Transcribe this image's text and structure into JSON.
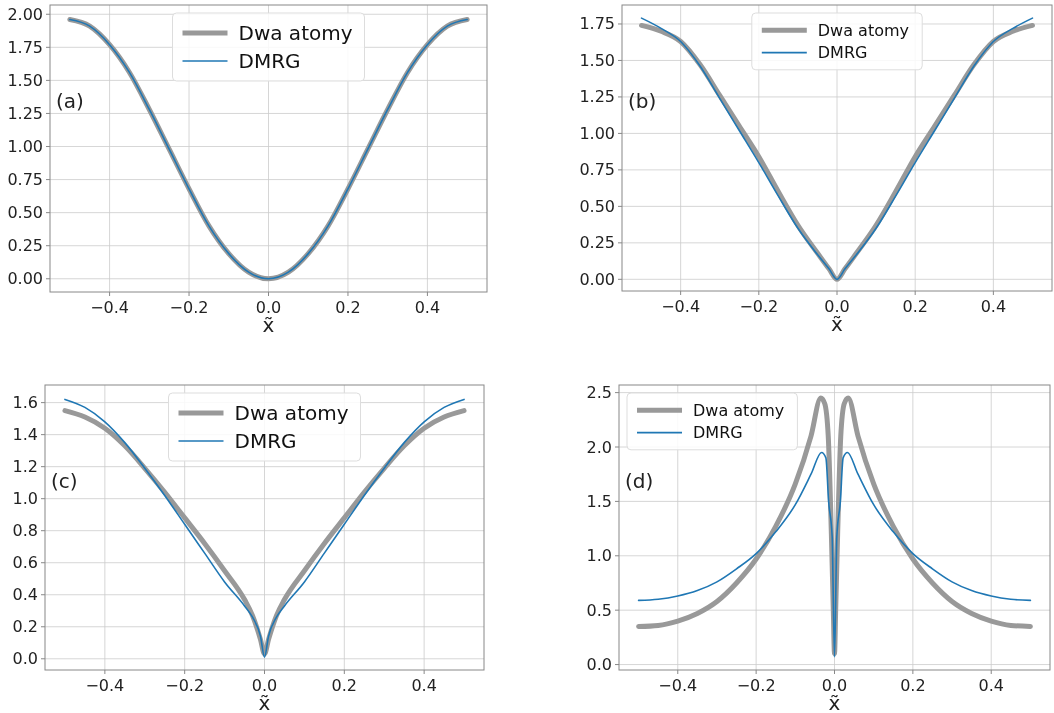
{
  "chart_data": [
    {
      "type": "line",
      "xlabel": "x̃",
      "xlim": [
        -0.55,
        0.55
      ],
      "ylim": [
        -0.1,
        2.07
      ],
      "xticks": [
        {
          "value": -0.4,
          "label": "−0.4"
        },
        {
          "value": -0.2,
          "label": "−0.2"
        },
        {
          "value": 0,
          "label": "0.0"
        },
        {
          "value": 0.2,
          "label": "0.2"
        },
        {
          "value": 0.4,
          "label": "0.4"
        }
      ],
      "yticks": [
        {
          "value": 0,
          "label": "0.00"
        },
        {
          "value": 0.25,
          "label": "0.25"
        },
        {
          "value": 0.5,
          "label": "0.50"
        },
        {
          "value": 0.75,
          "label": "0.75"
        },
        {
          "value": 1,
          "label": "1.00"
        },
        {
          "value": 1.25,
          "label": "1.25"
        },
        {
          "value": 1.5,
          "label": "1.50"
        },
        {
          "value": 1.75,
          "label": "1.75"
        },
        {
          "value": 2,
          "label": "2.00"
        }
      ],
      "grid": true,
      "legend": "top",
      "annotations": [
        "(a)"
      ],
      "series": [
        {
          "name": "Dwa atomy",
          "color": "#999999",
          "x": [
            -0.5,
            -0.45,
            -0.4,
            -0.35,
            -0.3,
            -0.25,
            -0.2,
            -0.15,
            -0.1,
            -0.05,
            0,
            0.05,
            0.1,
            0.15,
            0.2,
            0.25,
            0.3,
            0.35,
            0.4,
            0.45,
            0.5
          ],
          "values": [
            1.96,
            1.91,
            1.77,
            1.56,
            1.28,
            0.98,
            0.68,
            0.4,
            0.19,
            0.05,
            0,
            0.05,
            0.19,
            0.4,
            0.68,
            0.98,
            1.28,
            1.56,
            1.77,
            1.91,
            1.96
          ]
        },
        {
          "name": "DMRG",
          "color": "#1f77b4",
          "x": [
            -0.5,
            -0.45,
            -0.4,
            -0.35,
            -0.3,
            -0.25,
            -0.2,
            -0.15,
            -0.1,
            -0.05,
            0,
            0.05,
            0.1,
            0.15,
            0.2,
            0.25,
            0.3,
            0.35,
            0.4,
            0.45,
            0.5
          ],
          "values": [
            1.96,
            1.91,
            1.77,
            1.56,
            1.28,
            0.98,
            0.68,
            0.4,
            0.19,
            0.05,
            0,
            0.05,
            0.19,
            0.4,
            0.68,
            0.98,
            1.28,
            1.56,
            1.77,
            1.91,
            1.96
          ]
        }
      ]
    },
    {
      "type": "line",
      "xlabel": "x̃",
      "xlim": [
        -0.55,
        0.55
      ],
      "ylim": [
        -0.08,
        1.88
      ],
      "xticks": [
        {
          "value": -0.4,
          "label": "−0.4"
        },
        {
          "value": -0.2,
          "label": "−0.2"
        },
        {
          "value": 0,
          "label": "0.0"
        },
        {
          "value": 0.2,
          "label": "0.2"
        },
        {
          "value": 0.4,
          "label": "0.4"
        }
      ],
      "yticks": [
        {
          "value": 0,
          "label": "0.00"
        },
        {
          "value": 0.25,
          "label": "0.25"
        },
        {
          "value": 0.5,
          "label": "0.50"
        },
        {
          "value": 0.75,
          "label": "0.75"
        },
        {
          "value": 1,
          "label": "1.00"
        },
        {
          "value": 1.25,
          "label": "1.25"
        },
        {
          "value": 1.5,
          "label": "1.50"
        },
        {
          "value": 1.75,
          "label": "1.75"
        }
      ],
      "grid": true,
      "legend": "top",
      "annotations": [
        "(b)"
      ],
      "series": [
        {
          "name": "Dwa atomy",
          "color": "#999999",
          "x": [
            -0.5,
            -0.45,
            -0.4,
            -0.35,
            -0.3,
            -0.25,
            -0.2,
            -0.15,
            -0.1,
            -0.05,
            -0.02,
            0,
            0.02,
            0.05,
            0.1,
            0.15,
            0.2,
            0.25,
            0.3,
            0.35,
            0.4,
            0.45,
            0.5
          ],
          "values": [
            1.74,
            1.7,
            1.63,
            1.47,
            1.26,
            1.05,
            0.84,
            0.6,
            0.37,
            0.18,
            0.07,
            0,
            0.07,
            0.18,
            0.37,
            0.6,
            0.84,
            1.05,
            1.26,
            1.47,
            1.63,
            1.7,
            1.74
          ]
        },
        {
          "name": "DMRG",
          "color": "#1f77b4",
          "x": [
            -0.5,
            -0.45,
            -0.4,
            -0.35,
            -0.3,
            -0.25,
            -0.2,
            -0.15,
            -0.1,
            -0.05,
            -0.02,
            0,
            0.02,
            0.05,
            0.1,
            0.15,
            0.2,
            0.25,
            0.3,
            0.35,
            0.4,
            0.45,
            0.5
          ],
          "values": [
            1.79,
            1.72,
            1.63,
            1.46,
            1.24,
            1.02,
            0.8,
            0.57,
            0.35,
            0.17,
            0.07,
            0,
            0.07,
            0.17,
            0.35,
            0.57,
            0.8,
            1.02,
            1.24,
            1.46,
            1.63,
            1.72,
            1.79
          ]
        }
      ]
    },
    {
      "type": "line",
      "xlabel": "x̃",
      "xlim": [
        -0.55,
        0.55
      ],
      "ylim": [
        -0.07,
        1.71
      ],
      "xticks": [
        {
          "value": -0.4,
          "label": "−0.4"
        },
        {
          "value": -0.2,
          "label": "−0.2"
        },
        {
          "value": 0,
          "label": "0.0"
        },
        {
          "value": 0.2,
          "label": "0.2"
        },
        {
          "value": 0.4,
          "label": "0.4"
        }
      ],
      "yticks": [
        {
          "value": 0,
          "label": "0.0"
        },
        0.2,
        0.4,
        0.6,
        0.8,
        {
          "value": 1,
          "label": "1.0"
        },
        1.2,
        1.4,
        1.6
      ],
      "grid": true,
      "legend": "top",
      "annotations": [
        "(c)"
      ],
      "series": [
        {
          "name": "Dwa atomy",
          "color": "#999999",
          "x": [
            -0.5,
            -0.45,
            -0.4,
            -0.35,
            -0.3,
            -0.25,
            -0.2,
            -0.15,
            -0.1,
            -0.05,
            -0.03,
            -0.01,
            0,
            0.01,
            0.03,
            0.05,
            0.1,
            0.15,
            0.2,
            0.25,
            0.3,
            0.35,
            0.4,
            0.45,
            0.5
          ],
          "values": [
            1.55,
            1.51,
            1.44,
            1.33,
            1.19,
            1.04,
            0.88,
            0.72,
            0.55,
            0.37,
            0.27,
            0.12,
            0.03,
            0.12,
            0.27,
            0.37,
            0.55,
            0.72,
            0.88,
            1.04,
            1.19,
            1.33,
            1.44,
            1.51,
            1.55
          ]
        },
        {
          "name": "DMRG",
          "color": "#1f77b4",
          "x": [
            -0.5,
            -0.45,
            -0.4,
            -0.35,
            -0.3,
            -0.25,
            -0.2,
            -0.15,
            -0.1,
            -0.05,
            -0.03,
            -0.01,
            0,
            0.01,
            0.03,
            0.05,
            0.1,
            0.15,
            0.2,
            0.25,
            0.3,
            0.35,
            0.4,
            0.45,
            0.5
          ],
          "values": [
            1.62,
            1.57,
            1.48,
            1.35,
            1.19,
            1.02,
            0.84,
            0.66,
            0.48,
            0.33,
            0.26,
            0.14,
            0.01,
            0.14,
            0.26,
            0.33,
            0.48,
            0.66,
            0.84,
            1.02,
            1.19,
            1.35,
            1.48,
            1.57,
            1.62
          ]
        }
      ]
    },
    {
      "type": "line",
      "xlabel": "x̃",
      "xlim": [
        -0.55,
        0.55
      ],
      "ylim": [
        -0.05,
        2.57
      ],
      "xticks": [
        {
          "value": -0.4,
          "label": "−0.4"
        },
        {
          "value": -0.2,
          "label": "−0.2"
        },
        {
          "value": 0,
          "label": "0.0"
        },
        {
          "value": 0.2,
          "label": "0.2"
        },
        {
          "value": 0.4,
          "label": "0.4"
        }
      ],
      "yticks": [
        {
          "value": 0,
          "label": "0.0"
        },
        0.5,
        {
          "value": 1,
          "label": "1.0"
        },
        1.5,
        {
          "value": 2,
          "label": "2.0"
        },
        2.5
      ],
      "grid": true,
      "legend": "top left",
      "annotations": [
        "(d)"
      ],
      "series": [
        {
          "name": "Dwa atomy",
          "color": "#999999",
          "x": [
            -0.5,
            -0.45,
            -0.4,
            -0.35,
            -0.3,
            -0.25,
            -0.2,
            -0.15,
            -0.1,
            -0.06,
            -0.035,
            -0.025,
            -0.016,
            -0.008,
            -0.003,
            0,
            0.003,
            0.008,
            0.016,
            0.025,
            0.035,
            0.06,
            0.1,
            0.15,
            0.2,
            0.25,
            0.3,
            0.35,
            0.4,
            0.45,
            0.5
          ],
          "values": [
            0.35,
            0.36,
            0.4,
            0.47,
            0.58,
            0.75,
            0.97,
            1.27,
            1.66,
            2.1,
            2.45,
            2.4,
            2.1,
            1.2,
            0.5,
            0.1,
            0.5,
            1.2,
            2.1,
            2.4,
            2.45,
            2.1,
            1.66,
            1.27,
            0.97,
            0.75,
            0.58,
            0.47,
            0.4,
            0.36,
            0.35
          ]
        },
        {
          "name": "DMRG",
          "color": "#1f77b4",
          "x": [
            -0.5,
            -0.45,
            -0.4,
            -0.35,
            -0.3,
            -0.25,
            -0.2,
            -0.15,
            -0.1,
            -0.06,
            -0.033,
            -0.022,
            -0.015,
            -0.006,
            0,
            0.006,
            0.015,
            0.022,
            0.033,
            0.06,
            0.1,
            0.15,
            0.2,
            0.25,
            0.3,
            0.35,
            0.4,
            0.45,
            0.5
          ],
          "values": [
            0.59,
            0.6,
            0.63,
            0.68,
            0.76,
            0.88,
            1.02,
            1.22,
            1.47,
            1.75,
            1.95,
            1.9,
            1.5,
            1.18,
            0.07,
            1.18,
            1.5,
            1.9,
            1.95,
            1.75,
            1.47,
            1.22,
            1.02,
            0.88,
            0.76,
            0.68,
            0.63,
            0.6,
            0.59
          ]
        }
      ]
    }
  ]
}
